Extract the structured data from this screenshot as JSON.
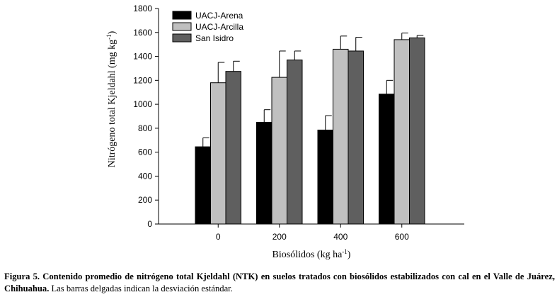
{
  "chart_data": {
    "type": "bar",
    "title": "",
    "xlabel": "Biosólidos (kg ha",
    "xlabel_sup": "-1",
    "xlabel_end": ")",
    "ylabel": "Nitrógeno total Kjeldahl (mg kg",
    "ylabel_sup": "-1",
    "ylabel_end": ")",
    "ylim": [
      0,
      1800
    ],
    "yticks": [
      "0",
      "200",
      "400",
      "600",
      "800",
      "1000",
      "1200",
      "1400",
      "1600",
      "1800"
    ],
    "categories": [
      "0",
      "200",
      "400",
      "600"
    ],
    "series": [
      {
        "name": "UACJ-Arena",
        "color": "#000000",
        "values": [
          645,
          850,
          785,
          1085
        ],
        "errors": [
          75,
          105,
          120,
          115
        ]
      },
      {
        "name": "UACJ-Arcilla",
        "color": "#c0c0c0",
        "values": [
          1180,
          1225,
          1460,
          1540
        ],
        "errors": [
          170,
          220,
          110,
          55
        ]
      },
      {
        "name": "San Isidro",
        "color": "#5f5f5f",
        "values": [
          1275,
          1370,
          1445,
          1555
        ],
        "errors": [
          85,
          75,
          115,
          20
        ]
      }
    ],
    "legend": "top-left",
    "grid": false
  },
  "caption": {
    "bold": "Figura 5. Contenido promedio de nitrógeno total Kjeldahl (NTK) en suelos tratados con biosólidos estabilizados con cal en el Valle de Juárez, Chihuahua.",
    "normal": " Las barras delgadas indican la desviación estándar."
  }
}
